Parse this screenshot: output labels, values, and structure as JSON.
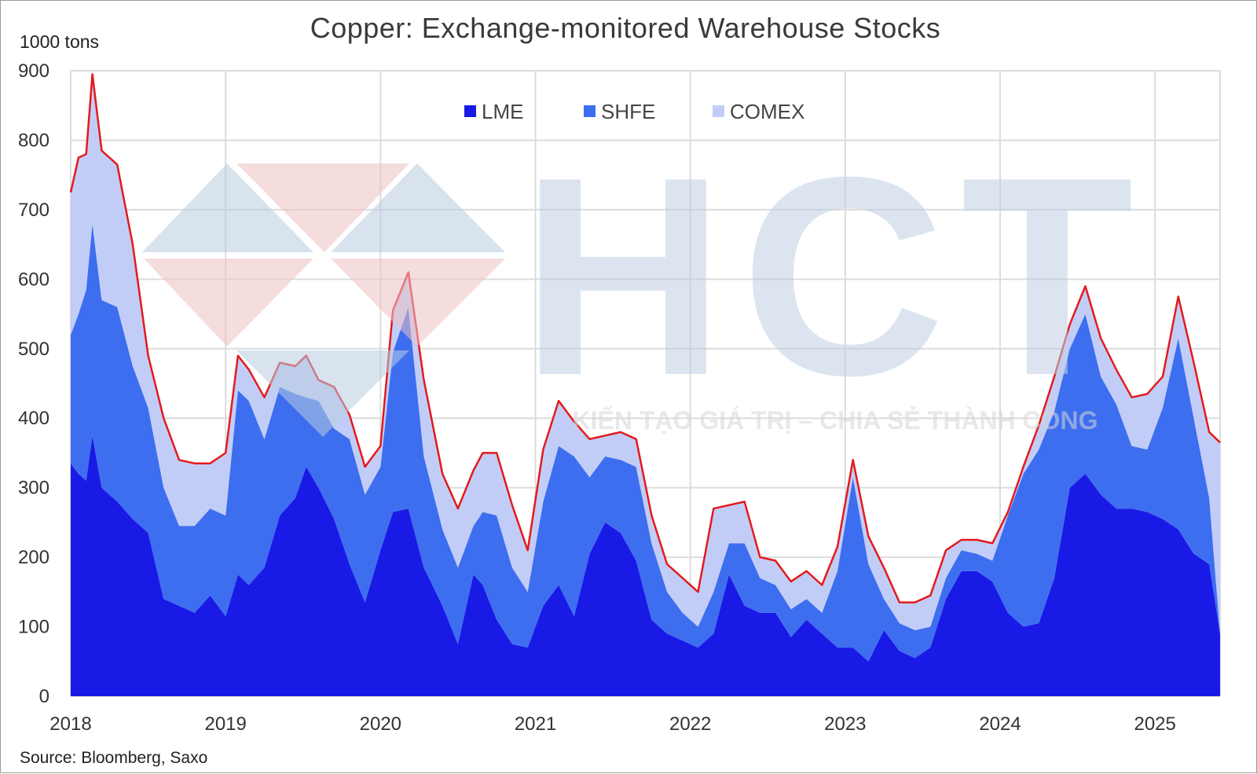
{
  "chart_data": {
    "type": "area",
    "stacked": true,
    "title": "Copper: Exchange-monitored Warehouse Stocks",
    "unit_label": "1000 tons",
    "source": "Source: Bloomberg, Saxo",
    "ylim": [
      0,
      900
    ],
    "y_ticks": [
      "0",
      "100",
      "200",
      "300",
      "400",
      "500",
      "600",
      "700",
      "800",
      "900"
    ],
    "x_ticks": [
      "2018",
      "2019",
      "2020",
      "2021",
      "2022",
      "2023",
      "2024",
      "2025"
    ],
    "x_tick_values": [
      2018,
      2019,
      2020,
      2021,
      2022,
      2023,
      2024,
      2025
    ],
    "xlim": [
      2018.0,
      2025.42
    ],
    "grid": true,
    "legend_position": "top-center",
    "total_line_color": "#e41a1c",
    "series": [
      {
        "name": "LME",
        "color": "#1a1ae6",
        "x": [
          2018.0,
          2018.05,
          2018.1,
          2018.14,
          2018.2,
          2018.3,
          2018.4,
          2018.5,
          2018.6,
          2018.7,
          2018.8,
          2018.9,
          2019.0,
          2019.08,
          2019.15,
          2019.25,
          2019.35,
          2019.45,
          2019.52,
          2019.6,
          2019.7,
          2019.8,
          2019.9,
          2020.0,
          2020.08,
          2020.18,
          2020.28,
          2020.4,
          2020.5,
          2020.6,
          2020.66,
          2020.75,
          2020.85,
          2020.95,
          2021.05,
          2021.15,
          2021.25,
          2021.35,
          2021.45,
          2021.55,
          2021.65,
          2021.75,
          2021.85,
          2021.95,
          2022.05,
          2022.15,
          2022.25,
          2022.35,
          2022.45,
          2022.55,
          2022.65,
          2022.75,
          2022.85,
          2022.95,
          2023.05,
          2023.15,
          2023.25,
          2023.35,
          2023.45,
          2023.55,
          2023.65,
          2023.75,
          2023.85,
          2023.95,
          2024.05,
          2024.15,
          2024.25,
          2024.35,
          2024.45,
          2024.55,
          2024.65,
          2024.75,
          2024.85,
          2024.95,
          2025.05,
          2025.15,
          2025.25,
          2025.35,
          2025.42
        ],
        "values": [
          335,
          320,
          310,
          375,
          300,
          280,
          255,
          235,
          140,
          130,
          120,
          145,
          115,
          175,
          160,
          185,
          260,
          285,
          330,
          300,
          255,
          190,
          135,
          210,
          265,
          270,
          185,
          130,
          75,
          175,
          160,
          110,
          75,
          70,
          130,
          160,
          115,
          205,
          250,
          235,
          195,
          110,
          90,
          80,
          70,
          90,
          175,
          130,
          120,
          120,
          85,
          110,
          90,
          70,
          70,
          50,
          95,
          65,
          55,
          70,
          140,
          180,
          180,
          165,
          120,
          100,
          105,
          170,
          300,
          320,
          290,
          270,
          270,
          265,
          255,
          240,
          205,
          190,
          90
        ]
      },
      {
        "name": "SHFE",
        "color": "#3d6ef0",
        "x": [
          2018.0,
          2018.05,
          2018.1,
          2018.14,
          2018.2,
          2018.3,
          2018.4,
          2018.5,
          2018.6,
          2018.7,
          2018.8,
          2018.9,
          2019.0,
          2019.08,
          2019.15,
          2019.25,
          2019.35,
          2019.45,
          2019.52,
          2019.6,
          2019.7,
          2019.8,
          2019.9,
          2020.0,
          2020.08,
          2020.18,
          2020.28,
          2020.4,
          2020.5,
          2020.6,
          2020.66,
          2020.75,
          2020.85,
          2020.95,
          2021.05,
          2021.15,
          2021.25,
          2021.35,
          2021.45,
          2021.55,
          2021.65,
          2021.75,
          2021.85,
          2021.95,
          2022.05,
          2022.15,
          2022.25,
          2022.35,
          2022.45,
          2022.55,
          2022.65,
          2022.75,
          2022.85,
          2022.95,
          2023.05,
          2023.15,
          2023.25,
          2023.35,
          2023.45,
          2023.55,
          2023.65,
          2023.75,
          2023.85,
          2023.95,
          2024.05,
          2024.15,
          2024.25,
          2024.35,
          2024.45,
          2024.55,
          2024.65,
          2024.75,
          2024.85,
          2024.95,
          2025.05,
          2025.15,
          2025.25,
          2025.35,
          2025.42
        ],
        "values": [
          185,
          230,
          275,
          305,
          270,
          280,
          220,
          180,
          160,
          115,
          125,
          125,
          145,
          265,
          265,
          185,
          185,
          150,
          100,
          125,
          130,
          180,
          155,
          120,
          230,
          290,
          160,
          110,
          110,
          70,
          105,
          150,
          110,
          80,
          150,
          200,
          230,
          110,
          95,
          105,
          135,
          110,
          60,
          40,
          30,
          60,
          45,
          90,
          50,
          40,
          40,
          30,
          30,
          110,
          245,
          140,
          45,
          40,
          40,
          30,
          30,
          30,
          25,
          30,
          140,
          220,
          250,
          240,
          200,
          230,
          170,
          150,
          90,
          90,
          160,
          275,
          195,
          95,
          0
        ]
      },
      {
        "name": "COMEX",
        "color": "#c2cdf7",
        "x": [
          2018.0,
          2018.05,
          2018.1,
          2018.14,
          2018.2,
          2018.3,
          2018.4,
          2018.5,
          2018.6,
          2018.7,
          2018.8,
          2018.9,
          2019.0,
          2019.08,
          2019.15,
          2019.25,
          2019.35,
          2019.45,
          2019.52,
          2019.6,
          2019.7,
          2019.8,
          2019.9,
          2020.0,
          2020.08,
          2020.18,
          2020.28,
          2020.4,
          2020.5,
          2020.6,
          2020.66,
          2020.75,
          2020.85,
          2020.95,
          2021.05,
          2021.15,
          2021.25,
          2021.35,
          2021.45,
          2021.55,
          2021.65,
          2021.75,
          2021.85,
          2021.95,
          2022.05,
          2022.15,
          2022.25,
          2022.35,
          2022.45,
          2022.55,
          2022.65,
          2022.75,
          2022.85,
          2022.95,
          2023.05,
          2023.15,
          2023.25,
          2023.35,
          2023.45,
          2023.55,
          2023.65,
          2023.75,
          2023.85,
          2023.95,
          2024.05,
          2024.15,
          2024.25,
          2024.35,
          2024.45,
          2024.55,
          2024.65,
          2024.75,
          2024.85,
          2024.95,
          2025.05,
          2025.15,
          2025.25,
          2025.35,
          2025.42
        ],
        "values": [
          205,
          225,
          195,
          215,
          215,
          205,
          175,
          75,
          100,
          95,
          90,
          65,
          90,
          50,
          45,
          60,
          35,
          40,
          60,
          30,
          60,
          35,
          40,
          30,
          60,
          50,
          110,
          80,
          85,
          80,
          85,
          90,
          90,
          60,
          75,
          65,
          50,
          55,
          30,
          40,
          40,
          40,
          40,
          50,
          50,
          120,
          55,
          60,
          30,
          35,
          40,
          40,
          40,
          35,
          25,
          40,
          45,
          30,
          40,
          45,
          40,
          15,
          20,
          25,
          5,
          10,
          35,
          50,
          35,
          40,
          55,
          50,
          70,
          80,
          45,
          60,
          80,
          95,
          275
        ]
      }
    ]
  },
  "watermark": {
    "letters": "HCT",
    "slogan": "KIẾN TẠO GIÁ TRỊ – CHIA SẺ THÀNH CÔNG"
  }
}
